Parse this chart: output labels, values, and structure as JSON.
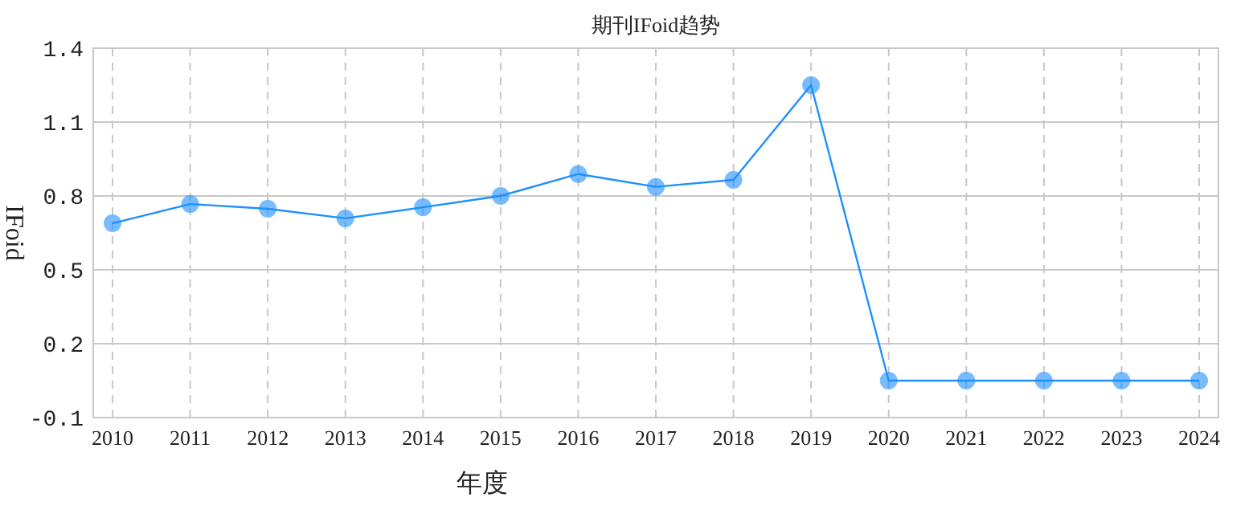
{
  "chart_data": {
    "type": "line",
    "title": "期刊IFoid趋势",
    "xlabel": "年度",
    "ylabel": "IFoid",
    "categories": [
      "2010",
      "2011",
      "2012",
      "2013",
      "2014",
      "2015",
      "2016",
      "2017",
      "2018",
      "2019",
      "2020",
      "2021",
      "2022",
      "2023",
      "2024"
    ],
    "series": [
      {
        "color": "#1e90ff",
        "values": [
          0.689,
          0.767,
          0.748,
          0.709,
          0.754,
          0.8,
          0.889,
          0.837,
          0.865,
          1.25,
          0.05,
          0.05,
          0.05,
          0.05,
          0.05
        ]
      }
    ],
    "ylim": [
      -0.1,
      1.4
    ],
    "yticks": [
      -0.1,
      0.2,
      0.5,
      0.8,
      1.1,
      1.4
    ],
    "grid": true,
    "marker": "circle",
    "line_style": "solid"
  }
}
